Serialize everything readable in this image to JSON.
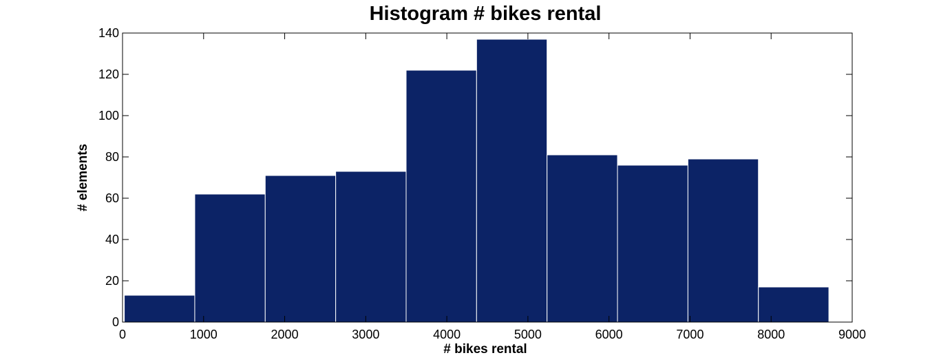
{
  "chart_data": {
    "type": "bar",
    "title": "Histogram # bikes rental",
    "xlabel": "# bikes rental",
    "ylabel": "# elements",
    "xlim": [
      0,
      9000
    ],
    "ylim": [
      0,
      140
    ],
    "xticks": [
      0,
      1000,
      2000,
      3000,
      4000,
      5000,
      6000,
      7000,
      8000,
      9000
    ],
    "yticks": [
      0,
      20,
      40,
      60,
      80,
      100,
      120,
      140
    ],
    "bin_edges": [
      22,
      891,
      1760,
      2629,
      3498,
      4367,
      5236,
      6105,
      6974,
      7843,
      8712
    ],
    "values": [
      13,
      62,
      71,
      73,
      122,
      137,
      81,
      76,
      79,
      17
    ],
    "bar_color": "#0c2366",
    "bar_edge_color": "#ffffff",
    "grid": false,
    "legend": false
  }
}
